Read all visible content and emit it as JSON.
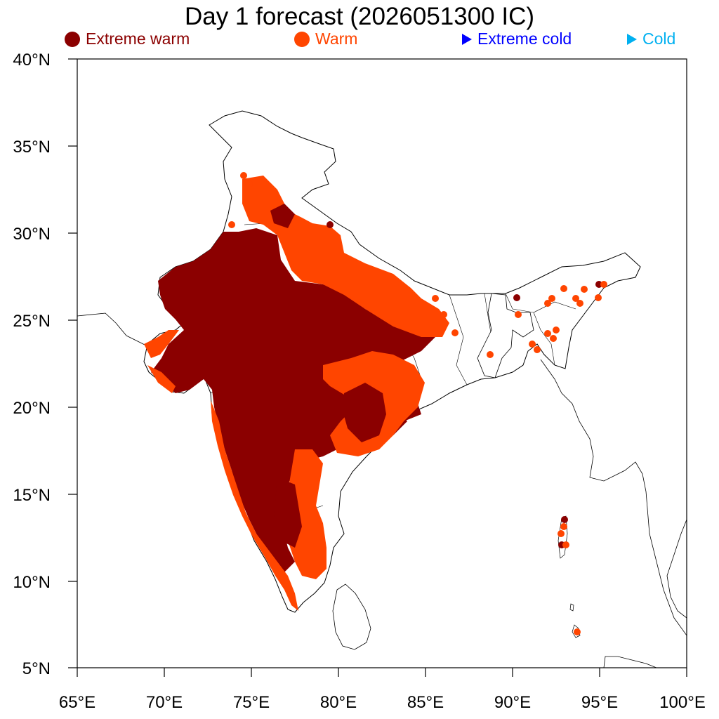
{
  "title": "Day 1 forecast (2026051300 IC)",
  "legend": [
    {
      "label": "Extreme warm",
      "marker": "circle",
      "color": "#8B0000"
    },
    {
      "label": "Warm",
      "marker": "circle",
      "color": "#FF4500"
    },
    {
      "label": "Extreme cold",
      "marker": "triangle",
      "color": "#0000FF"
    },
    {
      "label": "Cold",
      "marker": "triangle",
      "color": "#00B0F0"
    }
  ],
  "axes": {
    "x_ticks": [
      "65°E",
      "70°E",
      "75°E",
      "80°E",
      "85°E",
      "90°E",
      "95°E",
      "100°E"
    ],
    "y_ticks": [
      "5°N",
      "10°N",
      "15°N",
      "20°N",
      "25°N",
      "30°N",
      "35°N",
      "40°N"
    ],
    "lon_range": [
      65,
      100
    ],
    "lat_range": [
      5,
      40
    ]
  },
  "colors": {
    "extreme_warm": "#8B0000",
    "warm": "#FF4500",
    "border": "#000000"
  }
}
